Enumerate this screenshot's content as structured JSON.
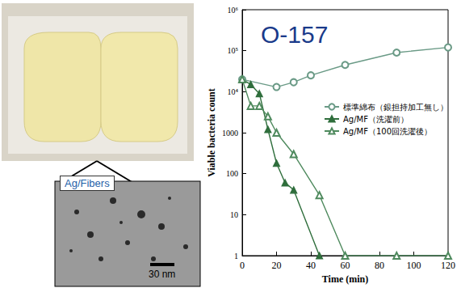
{
  "chart_data": {
    "type": "line",
    "title": "O-157",
    "x_label": "Time (min)",
    "y_label": "Viable bacteria count",
    "xlim": [
      0,
      120
    ],
    "xticks": [
      0,
      20,
      40,
      60,
      80,
      100,
      120
    ],
    "ylim": [
      1,
      1000000
    ],
    "yticks": [
      1,
      10,
      100,
      1000,
      {
        "value": 10000,
        "label": "10⁴"
      },
      {
        "value": 100000,
        "label": "10⁵"
      },
      {
        "value": 1000000,
        "label": "10⁶"
      }
    ],
    "log": "y",
    "grid": false,
    "legend": "right",
    "series": [
      {
        "name": "標準綿布（銀担持加工無し）",
        "color": "#6a9a86",
        "marker": "circle_open",
        "line_style": "solid",
        "x": [
          0,
          20,
          30,
          40,
          60,
          90,
          120
        ],
        "values": [
          20000,
          13000,
          17000,
          25000,
          45000,
          90000,
          120000
        ]
      },
      {
        "name": "Ag/MF（洗濯前）",
        "color": "#2f6e3c",
        "marker": "triangle",
        "line_style": "solid",
        "x": [
          0,
          5,
          10,
          15,
          20,
          25,
          30,
          45
        ],
        "values": [
          20000,
          15000,
          9000,
          1200,
          180,
          60,
          40,
          1
        ]
      },
      {
        "name": "Ag/MF（100回洗濯後）",
        "color": "#4f8a5e",
        "marker": "triangle_open",
        "line_style": "solid",
        "x": [
          0,
          5,
          10,
          15,
          20,
          30,
          45,
          60,
          90,
          120
        ],
        "values": [
          20000,
          4500,
          4500,
          2500,
          1000,
          300,
          30,
          1,
          1,
          1
        ]
      }
    ]
  },
  "insets": {
    "label": "Ag/Fibers",
    "scale_bar": "30 nm"
  }
}
